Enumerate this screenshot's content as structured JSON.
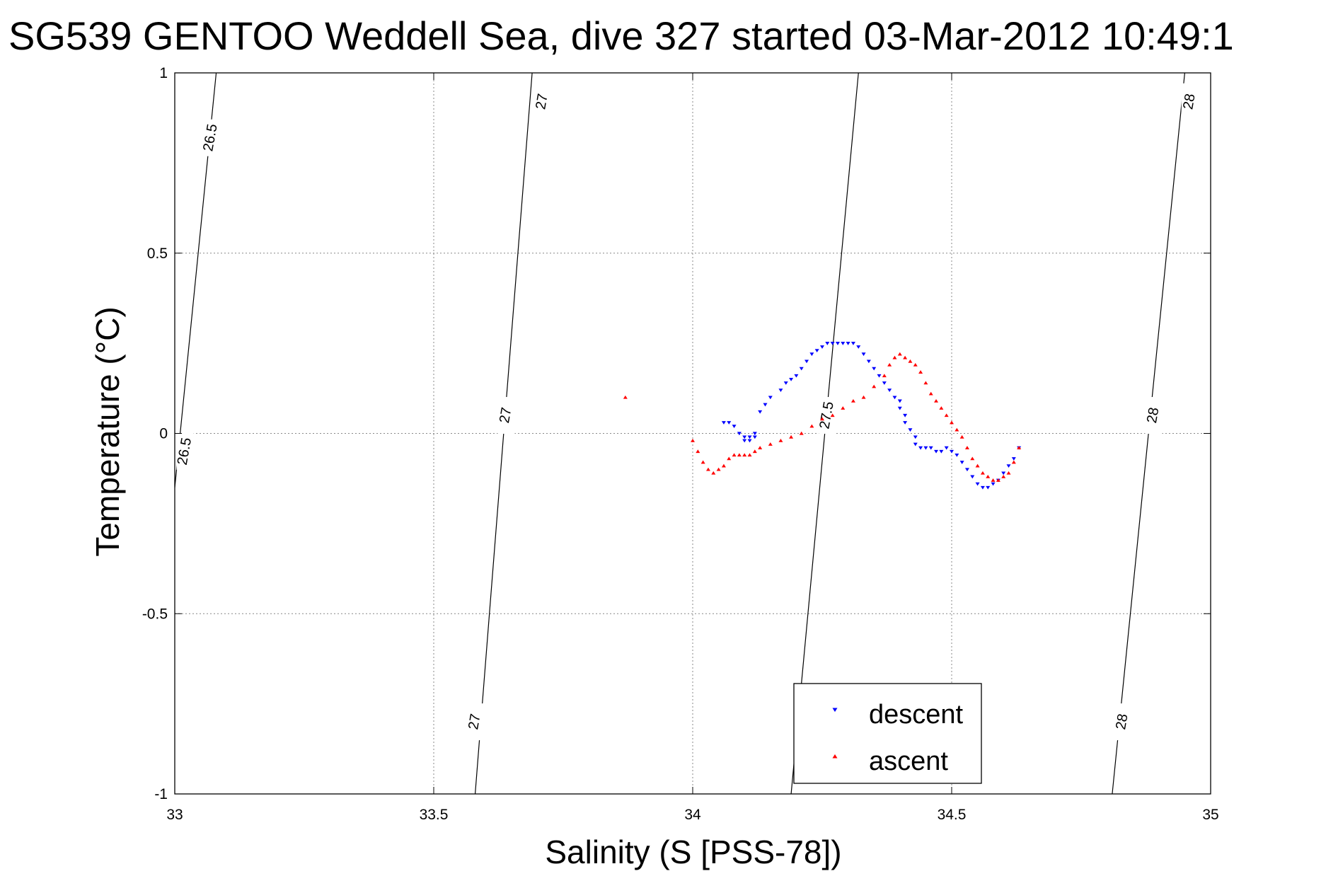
{
  "chart_data": {
    "type": "scatter",
    "title": "SG539 GENTOO Weddell Sea, dive 327 started 03-Mar-2012 10:49:1",
    "xlabel": "Salinity (S [PSS-78])",
    "ylabel": "Temperature (°C)",
    "xlim": [
      33,
      35
    ],
    "ylim": [
      -1,
      1
    ],
    "xticks": [
      33,
      33.5,
      34,
      34.5,
      35
    ],
    "yticks": [
      -1,
      -0.5,
      0,
      0.5,
      1
    ],
    "xtick_labels": [
      "33",
      "33.5",
      "34",
      "34.5",
      "35"
    ],
    "ytick_labels": [
      "-1",
      "-0.5",
      "0",
      "0.5",
      "1"
    ],
    "grid": true,
    "legend_position": "bottom-center",
    "contours": [
      {
        "value": "26.5",
        "points": [
          [
            33.0,
            -0.15
          ],
          [
            33.08,
            1.0
          ]
        ]
      },
      {
        "value": "27",
        "points": [
          [
            33.58,
            -1.0
          ],
          [
            33.69,
            1.0
          ]
        ]
      },
      {
        "value": "27.5",
        "points": [
          [
            34.19,
            -1.0
          ],
          [
            34.32,
            1.0
          ]
        ]
      },
      {
        "value": "28",
        "points": [
          [
            34.81,
            -1.0
          ],
          [
            34.95,
            1.0
          ]
        ]
      }
    ],
    "contour_labels": [
      {
        "text": "26.5",
        "x": 33.07,
        "y": 0.82
      },
      {
        "text": "27",
        "x": 33.71,
        "y": 0.92
      },
      {
        "text": "27.5",
        "x": 34.26,
        "y": 0.05
      },
      {
        "text": "28",
        "x": 34.96,
        "y": 0.92
      },
      {
        "text": "26.5",
        "x": 33.02,
        "y": -0.05
      },
      {
        "text": "27",
        "x": 33.64,
        "y": 0.05
      },
      {
        "text": "28",
        "x": 34.89,
        "y": 0.05
      },
      {
        "text": "27",
        "x": 33.58,
        "y": -0.8
      },
      {
        "text": "28",
        "x": 34.83,
        "y": -0.8
      }
    ],
    "series": [
      {
        "name": "descent",
        "color": "#0000ff",
        "marker": "triangle-down",
        "x": [
          34.06,
          34.07,
          34.08,
          34.09,
          34.1,
          34.1,
          34.11,
          34.11,
          34.12,
          34.12,
          34.13,
          34.14,
          34.15,
          34.17,
          34.18,
          34.19,
          34.2,
          34.21,
          34.22,
          34.23,
          34.24,
          34.25,
          34.26,
          34.27,
          34.28,
          34.29,
          34.3,
          34.31,
          34.32,
          34.33,
          34.34,
          34.35,
          34.36,
          34.37,
          34.38,
          34.39,
          34.4,
          34.4,
          34.41,
          34.41,
          34.42,
          34.43,
          34.43,
          34.44,
          34.45,
          34.46,
          34.47,
          34.48,
          34.49,
          34.5,
          34.51,
          34.52,
          34.53,
          34.54,
          34.55,
          34.56,
          34.57,
          34.58,
          34.59,
          34.6,
          34.61,
          34.62,
          34.63
        ],
        "y": [
          0.03,
          0.03,
          0.02,
          0.0,
          -0.01,
          -0.02,
          -0.02,
          -0.01,
          -0.01,
          0.0,
          0.06,
          0.08,
          0.1,
          0.12,
          0.14,
          0.15,
          0.16,
          0.18,
          0.2,
          0.22,
          0.23,
          0.24,
          0.25,
          0.25,
          0.25,
          0.25,
          0.25,
          0.25,
          0.24,
          0.22,
          0.2,
          0.18,
          0.16,
          0.14,
          0.12,
          0.1,
          0.09,
          0.07,
          0.05,
          0.03,
          0.01,
          -0.01,
          -0.03,
          -0.04,
          -0.04,
          -0.04,
          -0.05,
          -0.05,
          -0.04,
          -0.05,
          -0.06,
          -0.08,
          -0.1,
          -0.12,
          -0.14,
          -0.15,
          -0.15,
          -0.14,
          -0.13,
          -0.11,
          -0.09,
          -0.07,
          -0.04
        ]
      },
      {
        "name": "ascent",
        "color": "#ff0000",
        "marker": "triangle-up",
        "x": [
          33.87,
          34.0,
          34.01,
          34.02,
          34.03,
          34.04,
          34.05,
          34.06,
          34.07,
          34.08,
          34.09,
          34.1,
          34.11,
          34.12,
          34.13,
          34.15,
          34.17,
          34.19,
          34.21,
          34.23,
          34.25,
          34.27,
          34.29,
          34.31,
          34.33,
          34.35,
          34.37,
          34.38,
          34.39,
          34.4,
          34.41,
          34.42,
          34.43,
          34.44,
          34.45,
          34.46,
          34.47,
          34.48,
          34.49,
          34.5,
          34.51,
          34.52,
          34.53,
          34.54,
          34.55,
          34.56,
          34.57,
          34.58,
          34.59,
          34.6,
          34.61,
          34.62,
          34.63
        ],
        "y": [
          0.1,
          -0.02,
          -0.05,
          -0.08,
          -0.1,
          -0.11,
          -0.1,
          -0.09,
          -0.07,
          -0.06,
          -0.06,
          -0.06,
          -0.06,
          -0.05,
          -0.04,
          -0.03,
          -0.02,
          -0.01,
          0.0,
          0.02,
          0.04,
          0.05,
          0.07,
          0.09,
          0.1,
          0.13,
          0.16,
          0.19,
          0.21,
          0.22,
          0.21,
          0.2,
          0.19,
          0.17,
          0.14,
          0.11,
          0.09,
          0.07,
          0.05,
          0.03,
          0.01,
          -0.01,
          -0.04,
          -0.07,
          -0.09,
          -0.11,
          -0.12,
          -0.13,
          -0.13,
          -0.12,
          -0.11,
          -0.08,
          -0.04
        ]
      }
    ]
  }
}
